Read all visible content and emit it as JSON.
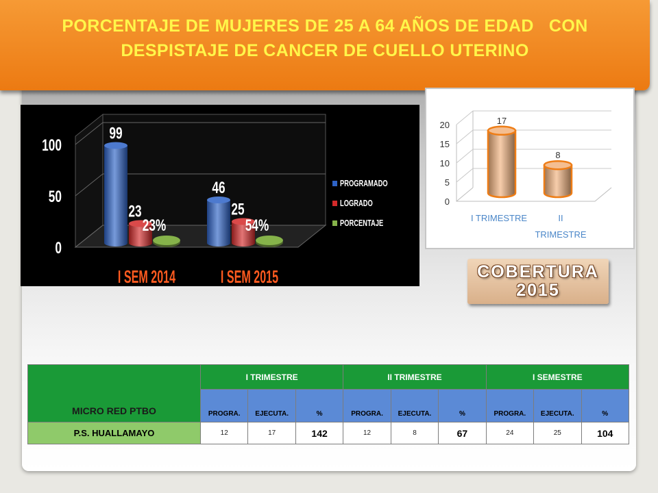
{
  "title": {
    "line1": "PORCENTAJE DE MUJERES DE 25 A 64 AÑOS DE EDAD   CON",
    "line2": "DESPISTAJE DE CANCER DE CUELLO UTERINO"
  },
  "colors": {
    "programado": "#2e63c6",
    "logrado": "#d42a2a",
    "porcentaje": "#86b34a",
    "tri": "#f2b27e",
    "orange": "#ee7d16",
    "green": "#1a9a37",
    "blue": "#5b8ad6",
    "light_green": "#8fca6a",
    "title_text": "#fff64a",
    "cat_text": "#ff5a1f"
  },
  "chart_data": [
    {
      "type": "bar",
      "title": "",
      "categories": [
        "I SEM 2014",
        "I SEM 2015"
      ],
      "series": [
        {
          "name": "PROGRAMADO",
          "values": [
            99,
            46
          ],
          "labels": [
            "99",
            "46"
          ]
        },
        {
          "name": "LOGRADO",
          "values": [
            23,
            25
          ],
          "labels": [
            "23",
            "25"
          ]
        },
        {
          "name": "PORCENTAJE",
          "values": [
            23,
            54
          ],
          "labels": [
            "23%",
            "54%"
          ]
        }
      ],
      "ylim": [
        0,
        100
      ],
      "yticks": [
        0,
        50,
        100
      ],
      "legend": "right",
      "style": "3d-cylinder",
      "grid": true
    },
    {
      "type": "bar",
      "title": "",
      "categories": [
        "I TRIMESTRE",
        "II TRIMESTRE"
      ],
      "values": [
        17,
        8
      ],
      "labels": [
        "17",
        "8"
      ],
      "ylim": [
        0,
        20
      ],
      "yticks": [
        0,
        5,
        10,
        15,
        20
      ],
      "legend": "none",
      "style": "3d-cylinder",
      "grid": true
    }
  ],
  "badge": {
    "line1": "COBERTURA",
    "line2": "2015"
  },
  "table": {
    "corner": "MICRO RED  PTBO",
    "groups": [
      "I TRIMESTRE",
      "II TRIMESTRE",
      "I SEMESTRE"
    ],
    "subheaders": [
      "PROGRA.",
      "EJECUTA.",
      "%",
      "PROGRA.",
      "EJECUTA.",
      "%",
      "PROGRA.",
      "EJECUTA.",
      "%"
    ],
    "rows": [
      {
        "name": "P.S. HUALLAMAYO",
        "cells": [
          "12",
          "17",
          "142",
          "12",
          "8",
          "67",
          "24",
          "25",
          "104"
        ]
      }
    ]
  }
}
